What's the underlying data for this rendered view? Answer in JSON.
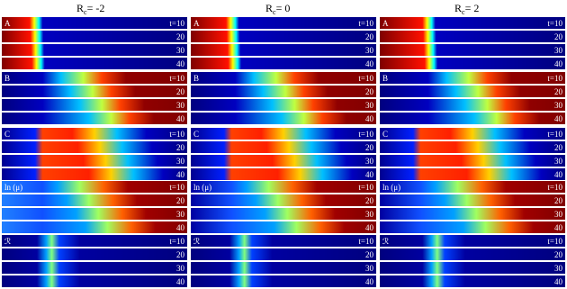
{
  "columns": [
    {
      "symbol": "R",
      "subscript": "c",
      "value": "= -2"
    },
    {
      "symbol": "R",
      "subscript": "c",
      "value": "= 0"
    },
    {
      "symbol": "R",
      "subscript": "c",
      "value": "= 2"
    }
  ],
  "panels": [
    "A",
    "B",
    "C",
    "ln (μ)",
    "ℛ"
  ],
  "times": [
    "t=10",
    "20",
    "30",
    "40"
  ]
}
